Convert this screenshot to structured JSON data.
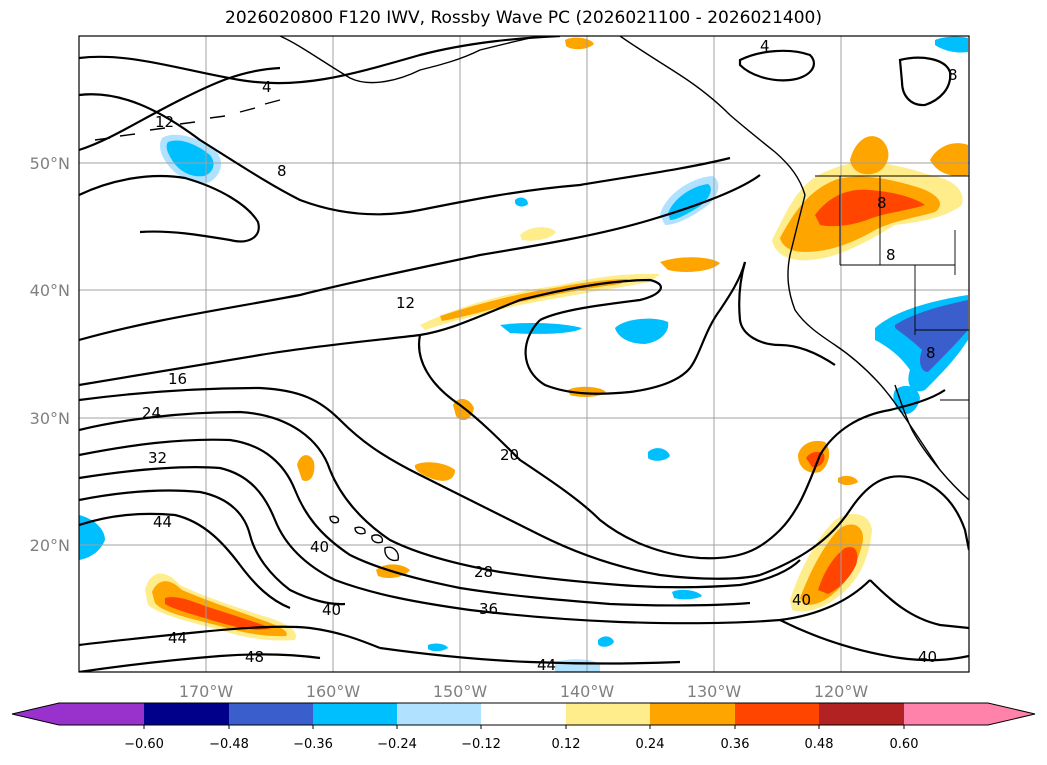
{
  "map": {
    "title": "2026020800 F120 IWV, Rossby Wave PC (2026021100 - 2026021400)",
    "lat_labels": [
      "50°N",
      "40°N",
      "30°N",
      "20°N"
    ],
    "lon_labels": [
      "170°W",
      "160°W",
      "150°W",
      "140°W",
      "130°W",
      "120°W"
    ],
    "contour_labels": [
      "4",
      "12",
      "8",
      "12",
      "16",
      "24",
      "32",
      "20",
      "44",
      "40",
      "28",
      "36",
      "40",
      "44",
      "48",
      "44",
      "40",
      "40",
      "8",
      "8",
      "8",
      "4",
      "8"
    ]
  },
  "colorbar": {
    "labels": [
      "−0.60",
      "−0.48",
      "−0.36",
      "−0.24",
      "−0.12",
      "0.12",
      "0.24",
      "0.36",
      "0.48",
      "0.60"
    ],
    "colors": [
      "#9932cc",
      "#00008b",
      "#3a5fcd",
      "#00bfff",
      "#b0e2ff",
      "#ffffff",
      "#ffec8b",
      "#ffa500",
      "#ff4500",
      "#b22222",
      "#ff82ab"
    ]
  }
}
